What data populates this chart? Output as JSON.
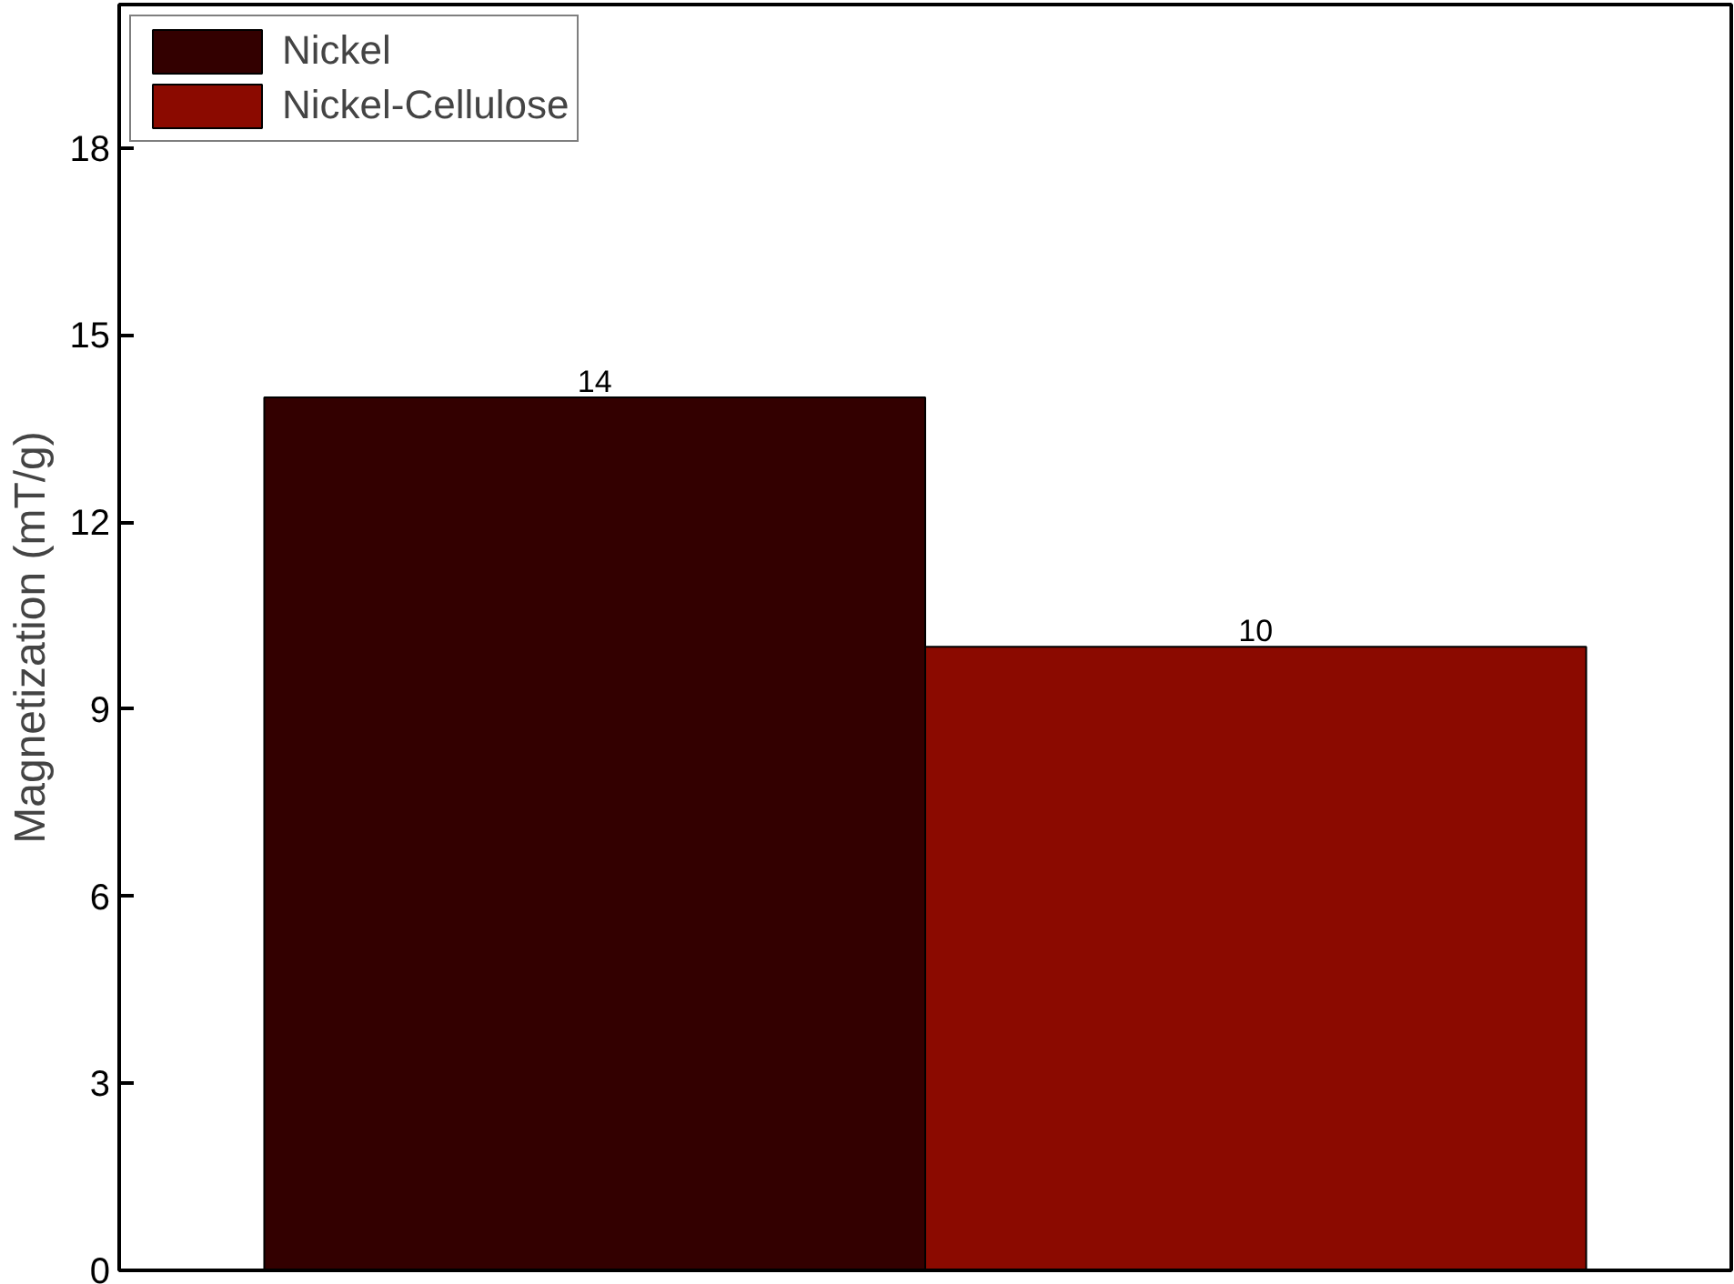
{
  "chart_data": {
    "type": "bar",
    "ylabel": "Magnetization (mT/g)",
    "categories": [
      null
    ],
    "series": [
      {
        "name": "Nickel",
        "color": "#330000",
        "values": [
          14
        ]
      },
      {
        "name": "Nickel-Cellulose",
        "color": "#8b0a00",
        "values": [
          10
        ]
      }
    ],
    "ylim": [
      0,
      20.3
    ],
    "yticks": [
      0,
      3,
      6,
      9,
      12,
      15,
      18
    ],
    "tick_labels": "y",
    "data_labels": true,
    "legend": "top left",
    "grid": false
  }
}
